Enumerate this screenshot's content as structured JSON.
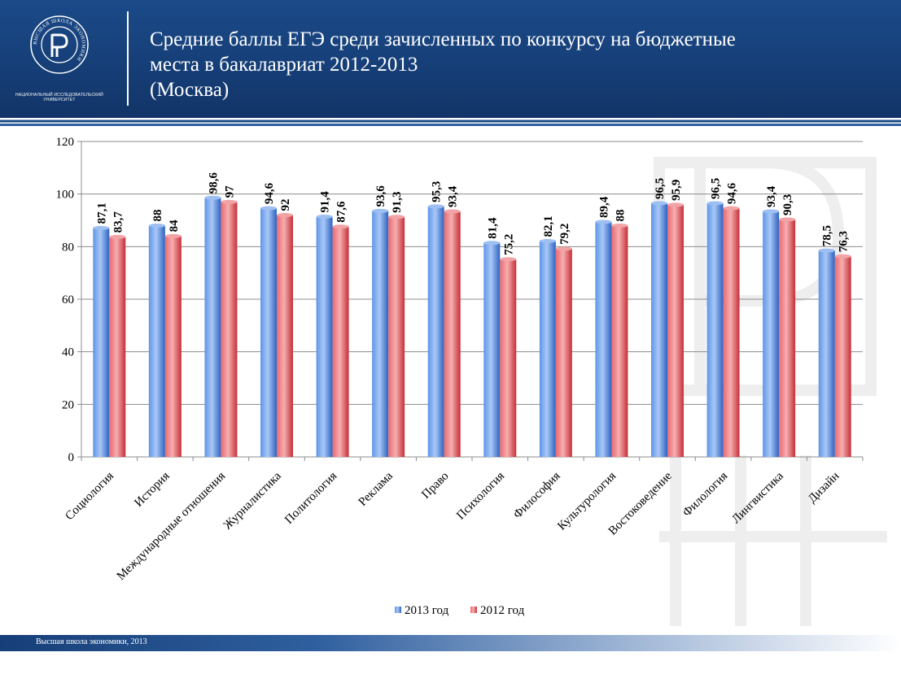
{
  "header": {
    "title_lines": [
      "Средние баллы ЕГЭ среди зачисленных по конкурсу на бюджетные",
      "места в бакалавриат 2012-2013",
      "(Москва)"
    ],
    "logo_ring_text": "ВЫСШАЯ ШКОЛА ЭКОНОМИКИ",
    "logo_caption_line1": "НАЦИОНАЛЬНЫЙ ИССЛЕДОВАТЕЛЬСКИЙ",
    "logo_caption_line2": "УНИВЕРСИТЕТ"
  },
  "footer": {
    "text": "Высшая школа экономики, 2013"
  },
  "colors": {
    "header_bg": "#163f78",
    "series_2013": "#3d75d6",
    "series_2012": "#d9404a"
  },
  "chart_data": {
    "type": "bar",
    "title": "",
    "xlabel": "",
    "ylabel": "",
    "ylim": [
      0,
      120
    ],
    "yticks": [
      0,
      20,
      40,
      60,
      80,
      100,
      120
    ],
    "grid": true,
    "legend_position": "bottom",
    "categories": [
      "Социология",
      "История",
      "Международные отношения",
      "Журналистика",
      "Политология",
      "Реклама",
      "Право",
      "Психология",
      "Философия",
      "Культурология",
      "Востоковедение",
      "Филология",
      "Лингвистика",
      "Дизайн"
    ],
    "series": [
      {
        "name": "2013 год",
        "values": [
          87.1,
          88,
          98.6,
          94.6,
          91.4,
          93.6,
          95.3,
          81.4,
          82.1,
          89.4,
          96.5,
          96.5,
          93.4,
          78.5
        ],
        "labels": [
          "87,1",
          "88",
          "98,6",
          "94,6",
          "91,4",
          "93,6",
          "95,3",
          "81,4",
          "82,1",
          "89,4",
          "96,5",
          "96,5",
          "93,4",
          "78,5"
        ]
      },
      {
        "name": "2012 год",
        "values": [
          83.7,
          84,
          97,
          92,
          87.6,
          91.3,
          93.4,
          75.2,
          79.2,
          88,
          95.9,
          94.6,
          90.3,
          76.3
        ],
        "labels": [
          "83,7",
          "84",
          "97",
          "92",
          "87,6",
          "91,3",
          "93,4",
          "75,2",
          "79,2",
          "88",
          "95,9",
          "94,6",
          "90,3",
          "76,3"
        ]
      }
    ]
  }
}
